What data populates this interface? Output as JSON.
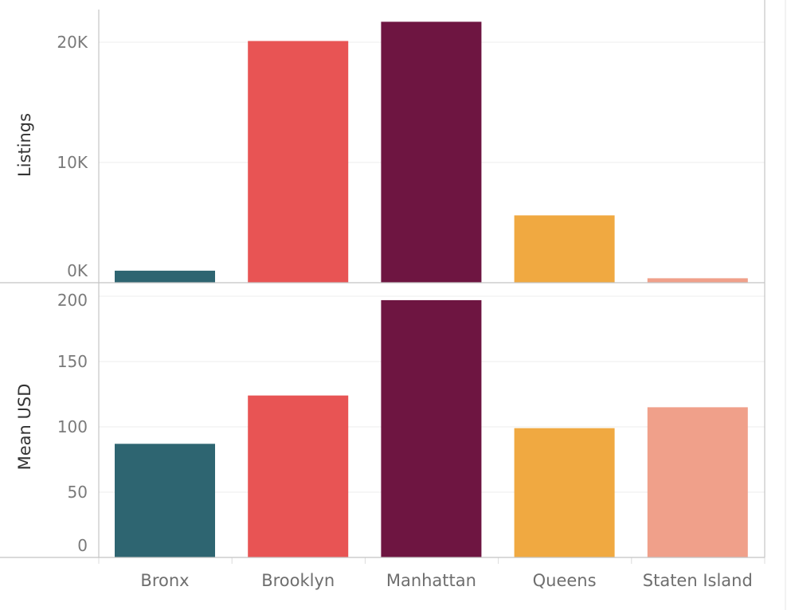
{
  "chart_data": [
    {
      "type": "bar",
      "ylabel": "Listings",
      "categories": [
        "Bronx",
        "Brooklyn",
        "Manhattan",
        "Queens",
        "Staten Island"
      ],
      "values": [
        1000,
        20100,
        21700,
        5600,
        370
      ],
      "yticks": [
        {
          "value": 0,
          "label": "0K"
        },
        {
          "value": 10000,
          "label": "10K"
        },
        {
          "value": 20000,
          "label": "20K"
        }
      ],
      "ylim": [
        0,
        22500
      ],
      "grid": true
    },
    {
      "type": "bar",
      "ylabel": "Mean USD",
      "categories": [
        "Bronx",
        "Brooklyn",
        "Manhattan",
        "Queens",
        "Staten Island"
      ],
      "values": [
        87,
        124,
        197,
        99,
        115
      ],
      "yticks": [
        {
          "value": 0,
          "label": "0"
        },
        {
          "value": 50,
          "label": "50"
        },
        {
          "value": 100,
          "label": "100"
        },
        {
          "value": 150,
          "label": "150"
        },
        {
          "value": 200,
          "label": "200"
        }
      ],
      "ylim": [
        0,
        200
      ],
      "grid": true
    }
  ],
  "colors": {
    "Bronx": "#2e6571",
    "Brooklyn": "#e85454",
    "Manhattan": "#6e1541",
    "Queens": "#f0a941",
    "Staten Island": "#f0a08a"
  }
}
